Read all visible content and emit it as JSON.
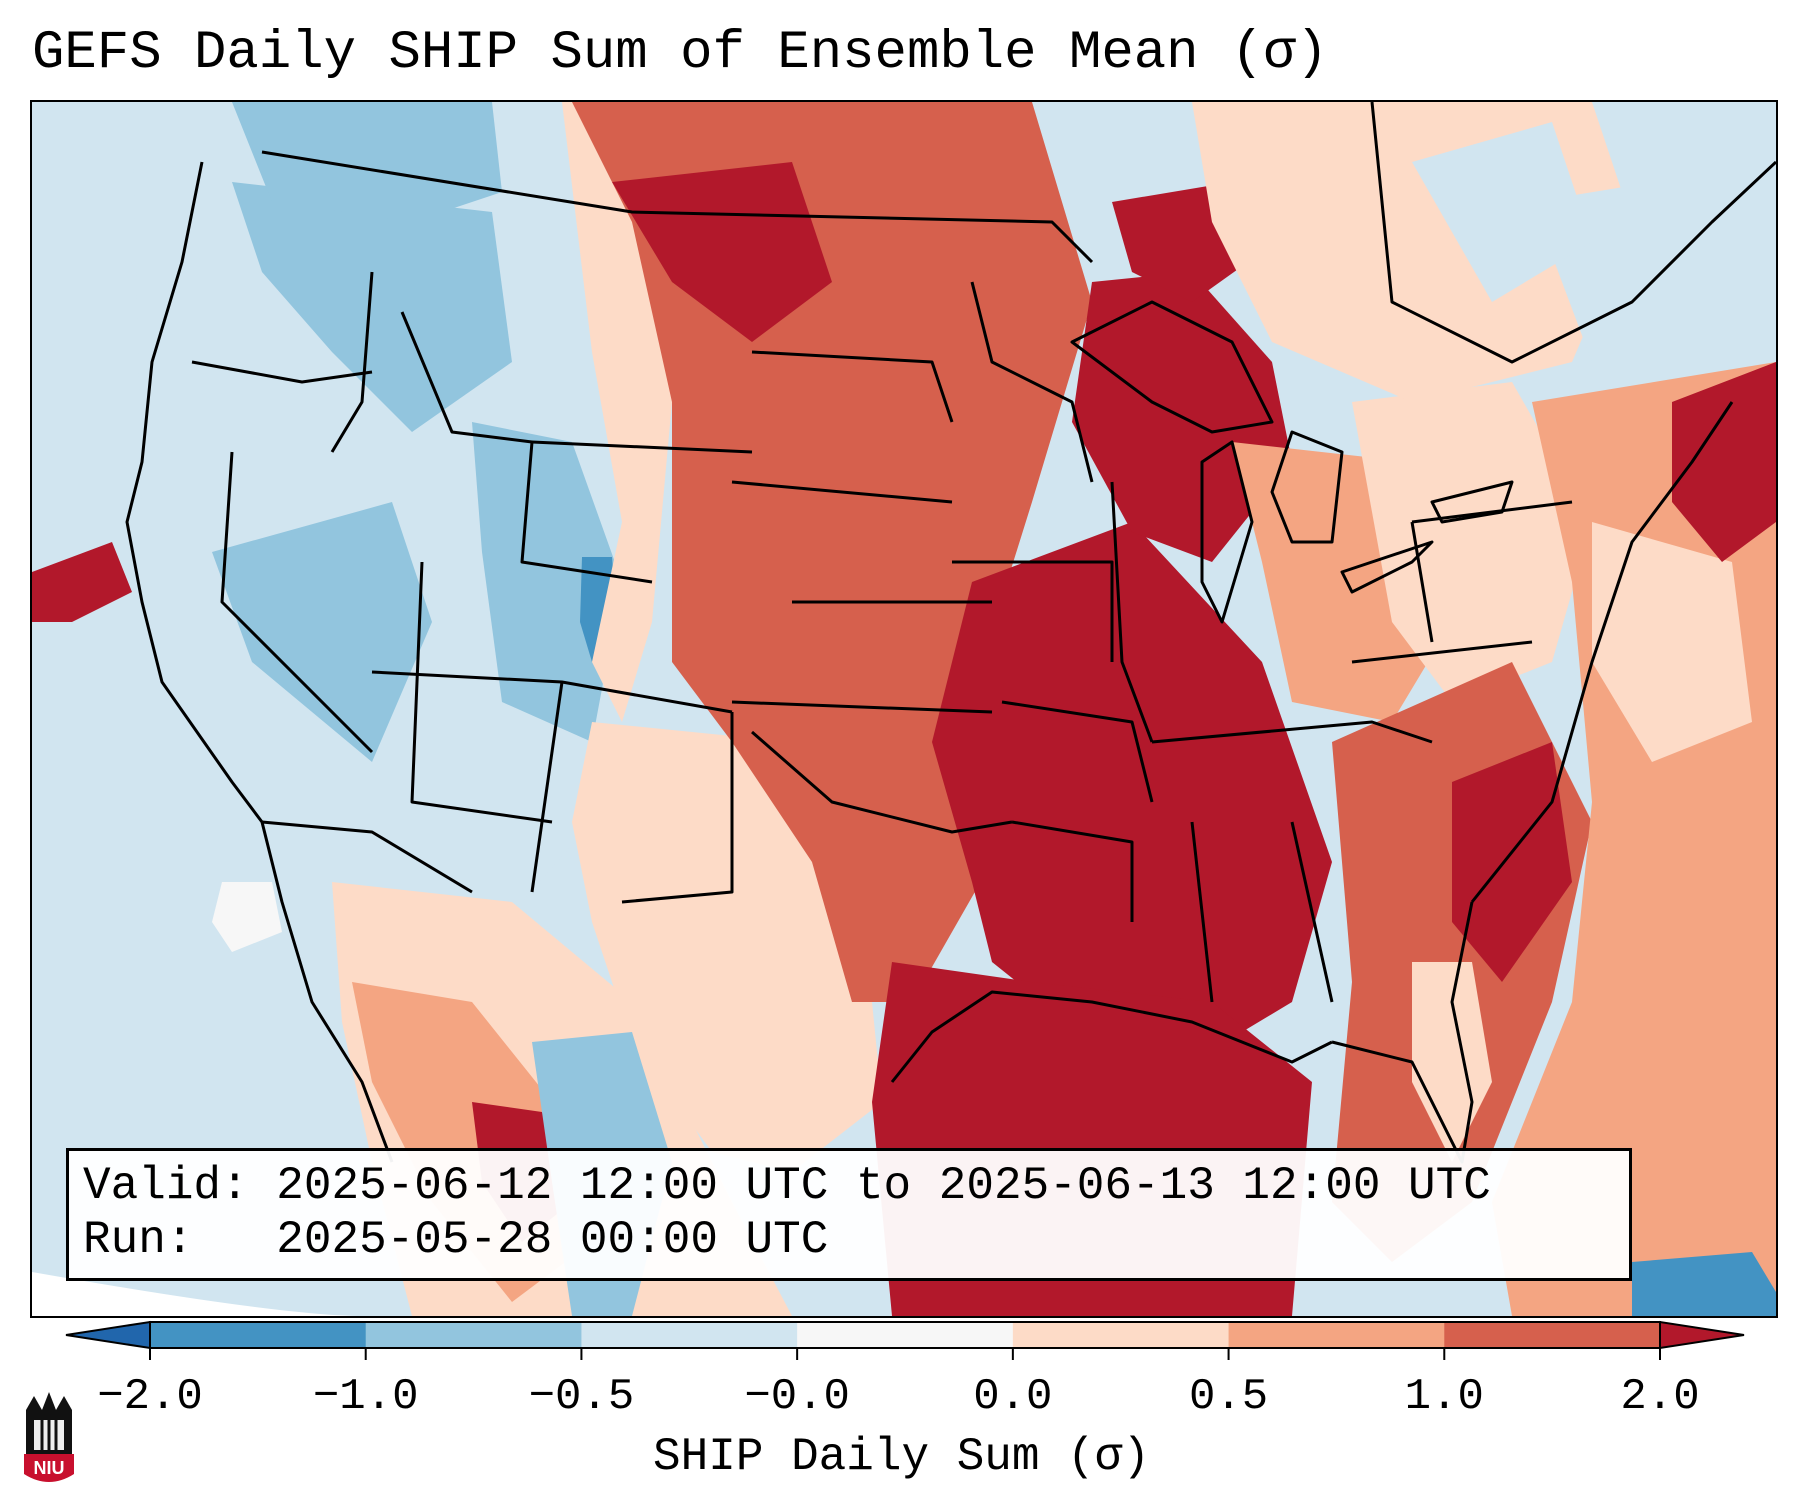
{
  "title": "GEFS Daily SHIP Sum of Ensemble Mean (σ)",
  "valid_box": {
    "valid_label": "Valid:",
    "valid_value": "2025-06-12 12:00 UTC to 2025-06-13 12:00 UTC",
    "run_label": "Run:",
    "run_value": "2025-05-28 00:00 UTC"
  },
  "colorbar": {
    "label": "SHIP Daily Sum (σ)",
    "tick_labels": [
      "−2.0",
      "−1.0",
      "−0.5",
      "−0.0",
      "0.0",
      "0.5",
      "1.0",
      "2.0"
    ],
    "bins": [
      {
        "from": -3.0,
        "to": -2.0,
        "color": "#2166ac"
      },
      {
        "from": -2.0,
        "to": -1.0,
        "color": "#4393c3"
      },
      {
        "from": -1.0,
        "to": -0.5,
        "color": "#92c5de"
      },
      {
        "from": -0.5,
        "to": -0.0,
        "color": "#d1e5f0"
      },
      {
        "from": -0.0,
        "to": 0.0,
        "color": "#f7f7f7"
      },
      {
        "from": 0.0,
        "to": 0.5,
        "color": "#fddbc7"
      },
      {
        "from": 0.5,
        "to": 1.0,
        "color": "#f4a582"
      },
      {
        "from": 1.0,
        "to": 2.0,
        "color": "#d6604d"
      },
      {
        "from": 2.0,
        "to": 3.0,
        "color": "#b2182b"
      }
    ]
  },
  "logo": {
    "text": "NIU"
  },
  "colors": {
    "strong_negative": "#4393c3",
    "negative": "#92c5de",
    "weak_negative": "#d1e5f0",
    "weak_positive": "#fddbc7",
    "positive": "#f4a582",
    "strong_positive": "#d6604d",
    "extreme_positive": "#b2182b"
  }
}
